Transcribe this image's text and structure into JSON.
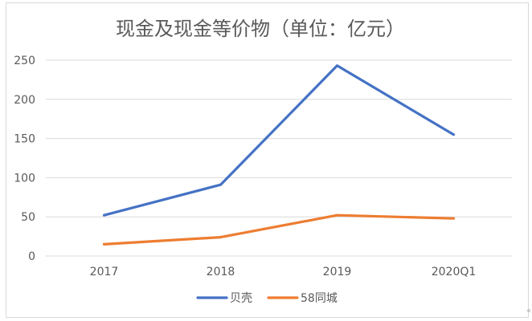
{
  "chart_data": {
    "type": "line",
    "title": "现金及现金等价物（单位：亿元）",
    "categories": [
      "2017",
      "2018",
      "2019",
      "2020Q1"
    ],
    "series": [
      {
        "name": "贝壳",
        "values": [
          52,
          91,
          243,
          155
        ],
        "color": "#4472c4"
      },
      {
        "name": "58同城",
        "values": [
          15,
          24,
          52,
          48
        ],
        "color": "#ed7d31"
      }
    ],
    "yticks": [
      "0",
      "50",
      "100",
      "150",
      "200",
      "250"
    ],
    "ylim": [
      0,
      250
    ],
    "grid": true,
    "legend_position": "bottom",
    "xlabel": "",
    "ylabel": ""
  }
}
